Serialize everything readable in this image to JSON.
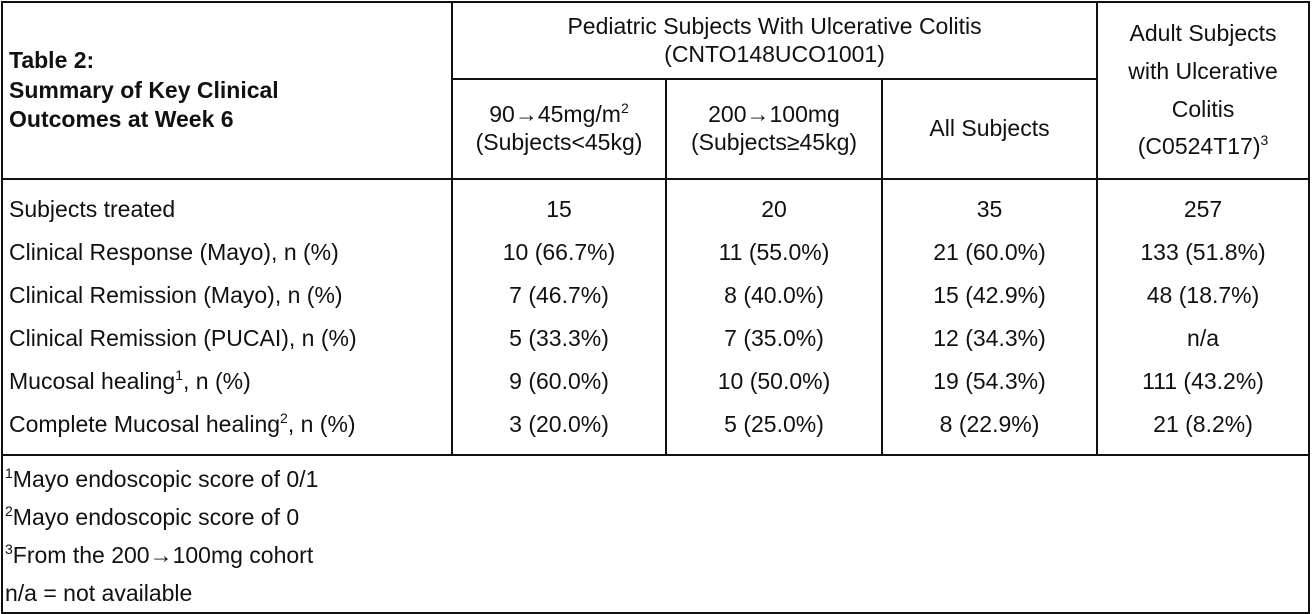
{
  "table": {
    "title_line1": "Table 2:",
    "title_line2": "Summary of Key Clinical",
    "title_line3": "Outcomes at Week 6",
    "pediatric_header_line1": "Pediatric Subjects With Ulcerative Colitis",
    "pediatric_header_line2": "(CNTO148UCO1001)",
    "adult_header_line1": "Adult Subjects",
    "adult_header_line2": "with Ulcerative",
    "adult_header_line3": "Colitis",
    "adult_header_line4": "(C0524T17)",
    "adult_header_sup": "3",
    "col1_line1": "90→45mg/m",
    "col1_line1_sup": "2",
    "col1_line2": "(Subjects<45kg)",
    "col2_line1": "200→100mg",
    "col2_line2": "(Subjects≥45kg)",
    "col3": "All Subjects",
    "rows": [
      {
        "label": "Subjects treated",
        "label_sup": "",
        "label_suffix": "",
        "values": [
          "15",
          "20",
          "35",
          "257"
        ]
      },
      {
        "label": "Clinical Response (Mayo), n (%)",
        "label_sup": "",
        "label_suffix": "",
        "values": [
          "10 (66.7%)",
          "11 (55.0%)",
          "21 (60.0%)",
          "133 (51.8%)"
        ]
      },
      {
        "label": "Clinical Remission (Mayo), n (%)",
        "label_sup": "",
        "label_suffix": "",
        "values": [
          "7 (46.7%)",
          "8 (40.0%)",
          "15 (42.9%)",
          "48 (18.7%)"
        ]
      },
      {
        "label": "Clinical Remission (PUCAI), n (%)",
        "label_sup": "",
        "label_suffix": "",
        "values": [
          "5 (33.3%)",
          "7 (35.0%)",
          "12 (34.3%)",
          "n/a"
        ]
      },
      {
        "label": "Mucosal healing",
        "label_sup": "1",
        "label_suffix": ", n (%)",
        "values": [
          "9 (60.0%)",
          "10 (50.0%)",
          "19 (54.3%)",
          "111 (43.2%)"
        ]
      },
      {
        "label": "Complete Mucosal healing",
        "label_sup": "2",
        "label_suffix": ", n (%)",
        "values": [
          "3 (20.0%)",
          "5 (25.0%)",
          "8 (22.9%)",
          "21 (8.2%)"
        ]
      }
    ],
    "footnotes": [
      {
        "sup": "1",
        "text": "Mayo endoscopic score of 0/1"
      },
      {
        "sup": "2",
        "text": "Mayo endoscopic score of 0"
      },
      {
        "sup": "3",
        "text": "From the 200→100mg cohort"
      },
      {
        "sup": "",
        "text": "n/a = not available"
      }
    ]
  }
}
